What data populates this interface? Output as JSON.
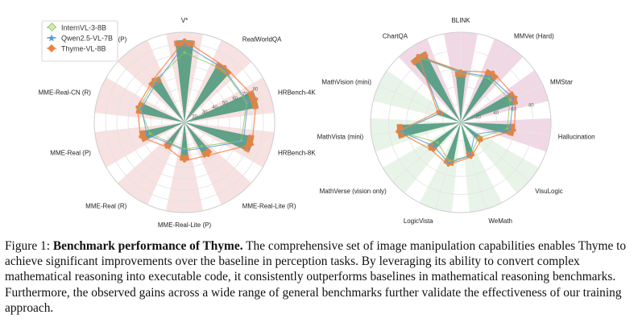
{
  "caption": {
    "label": "Figure 1:",
    "title": "Benchmark performance of Thyme.",
    "body": "The comprehensive set of image manipulation capabilities enables Thyme to achieve significant improvements over the baseline in perception tasks. By leveraging its ability to convert complex mathematical reasoning into executable code, it consistently outperforms baselines in mathematical reasoning benchmarks. Furthermore, the observed gains across a wide range of general benchmarks further validate the effectiveness of our training approach."
  },
  "colors": {
    "internvl": "#8ec25b",
    "qwen": "#5b9bd5",
    "thyme": "#f08040",
    "fill": "#4f9a7e",
    "perception_band": "#e7a9a9",
    "math_band": "#bfe0bf",
    "general_band": "#d88fb4"
  },
  "chart_data": [
    {
      "type": "radar",
      "title": "",
      "legend": [
        "InternVL-3-8B",
        "Qwen2.5-VL-7B",
        "Thyme-VL-8B"
      ],
      "legend_position": "top-left",
      "radial_ticks": [
        "20",
        "30",
        "40",
        "50",
        "60",
        "70",
        "80"
      ],
      "categories": [
        "V*",
        "RealWorldQA",
        "HRBench-4K",
        "HRBench-8K",
        "MME-Real-Lite (R)",
        "MME-Real-Lite (P)",
        "MME-Real (R)",
        "MME-Real (P)",
        "MME-Real-CN (R)",
        "MME-Real-CN (P)"
      ],
      "series": [
        {
          "name": "InternVL-3-8B",
          "values": [
            72,
            68,
            68,
            63,
            36,
            34,
            32,
            42,
            52,
            55
          ]
        },
        {
          "name": "Qwen2.5-VL-7B",
          "values": [
            79,
            69,
            69,
            65,
            38,
            35,
            33,
            45,
            50,
            53
          ]
        },
        {
          "name": "Thyme-VL-8B",
          "values": [
            83,
            71,
            77,
            73,
            46,
            44,
            37,
            51,
            54,
            57
          ]
        }
      ]
    },
    {
      "type": "radar",
      "title": "",
      "radial_ticks": [
        "20",
        "40",
        "60",
        "80"
      ],
      "categories": [
        "BLINK",
        "MMVet (Hard)",
        "MMStar",
        "Hallucination",
        "VisuLogic",
        "WeMath",
        "LogicVista",
        "MathVerse (vision only)",
        "MathVista (mini)",
        "MathVision (mini)",
        "ChartQA"
      ],
      "series": [
        {
          "name": "InternVL-3-8B",
          "values": [
            55,
            58,
            60,
            52,
            26,
            38,
            45,
            34,
            70,
            25,
            86
          ]
        },
        {
          "name": "Qwen2.5-VL-7B",
          "values": [
            56,
            60,
            64,
            55,
            20,
            38,
            47,
            40,
            68,
            25,
            87
          ]
        },
        {
          "name": "Thyme-VL-8B",
          "values": [
            57,
            66,
            67,
            60,
            30,
            40,
            49,
            45,
            71,
            28,
            88
          ]
        }
      ]
    }
  ]
}
